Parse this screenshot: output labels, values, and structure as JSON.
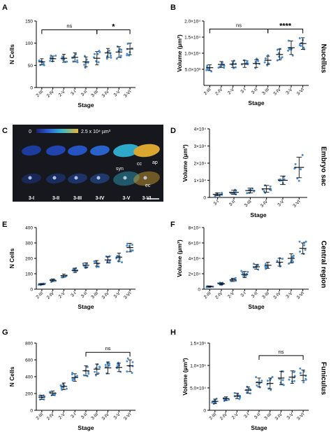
{
  "colors": {
    "point": "#4a8fd1",
    "bar": "#111111",
    "micro_bg": "#16181d"
  },
  "side_labels": [
    "Nucellus",
    "Embryo sac",
    "Central region",
    "Funiculus"
  ],
  "chart_data": [
    {
      "panel": "A",
      "type": "scatter",
      "categories": [
        "2-III",
        "2-IV",
        "2-V",
        "3-I",
        "3-II",
        "3-III",
        "3-IV",
        "3-V",
        "3-VI"
      ],
      "means": [
        58,
        65,
        66,
        68,
        58,
        66,
        78,
        80,
        87
      ],
      "sd": [
        7,
        6,
        9,
        10,
        11,
        15,
        10,
        12,
        13
      ],
      "ylabel": "N Cells",
      "xlabel": "Stage",
      "ylim": [
        0,
        150
      ],
      "yticks": [
        0,
        50,
        100,
        150
      ],
      "yticklabels": [
        "0",
        "50",
        "100",
        "150"
      ],
      "brackets": [
        {
          "from": 0,
          "to": 5,
          "label": "ns",
          "y": 130
        },
        {
          "from": 5,
          "to": 8,
          "label": "*",
          "y": 130
        }
      ]
    },
    {
      "panel": "B",
      "type": "scatter",
      "categories": [
        "2-III",
        "2-IV",
        "2-V",
        "3-I",
        "3-II",
        "3-III",
        "3-IV",
        "3-V",
        "3-VI"
      ],
      "means": [
        5500,
        6500,
        6600,
        6700,
        6800,
        7800,
        9600,
        11700,
        13000
      ],
      "sd": [
        900,
        900,
        1000,
        1100,
        1200,
        1300,
        1700,
        2100,
        1800
      ],
      "ylabel": "Volume (µm³)",
      "xlabel": "Stage",
      "ylim": [
        0,
        20000
      ],
      "yticks": [
        5000,
        10000,
        15000,
        20000
      ],
      "yticklabels": [
        "5.0×10³",
        "1.0×10⁴",
        "1.5×10⁴",
        "2.0×10⁴"
      ],
      "brackets": [
        {
          "from": 0,
          "to": 5,
          "label": "ns",
          "y": 17500
        },
        {
          "from": 5,
          "to": 8,
          "label": "****",
          "y": 17500
        }
      ]
    },
    {
      "panel": "D",
      "type": "scatter",
      "categories": [
        "3-I",
        "3-II",
        "3-III",
        "3-IV",
        "3-V",
        "3-VI"
      ],
      "means": [
        1800,
        3000,
        4000,
        5000,
        10000,
        17500
      ],
      "sd": [
        800,
        1200,
        1400,
        2000,
        2500,
        6000
      ],
      "ylabel": "Volume (µm³)",
      "xlabel": "Stage",
      "ylim": [
        0,
        40000
      ],
      "yticks": [
        0,
        10000,
        20000,
        30000,
        40000
      ],
      "yticklabels": [
        "0",
        "1×10⁴",
        "2×10⁴",
        "3×10⁴",
        "4×10⁴"
      ],
      "brackets": []
    },
    {
      "panel": "E",
      "type": "scatter",
      "categories": [
        "2-III",
        "2-IV",
        "2-V",
        "3-I",
        "3-II",
        "3-III",
        "3-IV",
        "3-V",
        "3-VI"
      ],
      "means": [
        32,
        58,
        88,
        122,
        155,
        168,
        190,
        208,
        270
      ],
      "sd": [
        4,
        8,
        10,
        14,
        16,
        18,
        20,
        26,
        28
      ],
      "ylabel": "N Cells",
      "xlabel": "Stage",
      "ylim": [
        0,
        400
      ],
      "yticks": [
        0,
        100,
        200,
        300,
        400
      ],
      "yticklabels": [
        "0",
        "100",
        "200",
        "300",
        "400"
      ],
      "brackets": []
    },
    {
      "panel": "F",
      "type": "scatter",
      "categories": [
        "2-III",
        "2-IV",
        "2-V",
        "3-I",
        "3-II",
        "3-III",
        "3-IV",
        "3-V",
        "3-VI"
      ],
      "means": [
        3500,
        7000,
        12000,
        19000,
        29000,
        31000,
        35000,
        40000,
        53000
      ],
      "sd": [
        700,
        1200,
        2000,
        4000,
        3000,
        4000,
        5000,
        6000,
        7000
      ],
      "ylabel": "Volume (µm³)",
      "xlabel": "Stage",
      "ylim": [
        0,
        80000
      ],
      "yticks": [
        0,
        20000,
        40000,
        60000,
        80000
      ],
      "yticklabels": [
        "0",
        "2×10⁴",
        "4×10⁴",
        "6×10⁴",
        "8×10⁴"
      ],
      "brackets": []
    },
    {
      "panel": "G",
      "type": "scatter",
      "categories": [
        "2-III",
        "2-IV",
        "2-V",
        "3-I",
        "3-II",
        "3-III",
        "3-IV",
        "3-V",
        "3-VI"
      ],
      "means": [
        155,
        205,
        285,
        390,
        470,
        490,
        505,
        510,
        530
      ],
      "sd": [
        25,
        25,
        40,
        45,
        60,
        60,
        70,
        50,
        70
      ],
      "ylabel": "N Cells",
      "xlabel": "Stage",
      "ylim": [
        0,
        800
      ],
      "yticks": [
        0,
        200,
        400,
        600,
        800
      ],
      "yticklabels": [
        "0",
        "200",
        "400",
        "600",
        "800"
      ],
      "brackets": [
        {
          "from": 4,
          "to": 8,
          "label": "ns",
          "y": 690
        }
      ]
    },
    {
      "panel": "H",
      "type": "scatter",
      "categories": [
        "2-III",
        "2-IV",
        "2-V",
        "3-I",
        "3-II",
        "3-III",
        "3-IV",
        "3-V",
        "3-VI"
      ],
      "means": [
        20000,
        26000,
        32000,
        45000,
        62000,
        60000,
        72000,
        74000,
        78000
      ],
      "sd": [
        5000,
        4000,
        6000,
        7000,
        10000,
        12000,
        15000,
        14000,
        12000
      ],
      "ylabel": "Volume (µm³)",
      "xlabel": "Stage",
      "ylim": [
        0,
        150000
      ],
      "yticks": [
        0,
        50000,
        100000,
        150000
      ],
      "yticklabels": [
        "0",
        "5.0×10⁴",
        "1.0×10⁵",
        "1.5×10⁵"
      ],
      "brackets": [
        {
          "from": 4,
          "to": 8,
          "label": "ns",
          "y": 122000
        }
      ]
    }
  ],
  "microscopy": {
    "panel": "C",
    "colorbar_min": "0",
    "colorbar_max": "2.5 x 10⁴ µm³",
    "stage_labels": [
      "3-I",
      "3-II",
      "3-III",
      "3-IV",
      "3-V",
      "3-VI"
    ],
    "annotations": [
      "syn",
      "cc",
      "ap",
      "ec"
    ]
  }
}
